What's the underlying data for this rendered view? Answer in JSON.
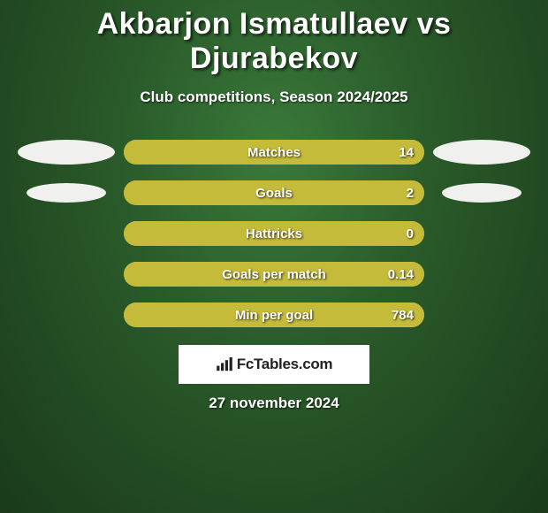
{
  "title": "Akbarjon Ismatullaev vs Djurabekov",
  "subtitle": "Club competitions, Season 2024/2025",
  "date": "27 november 2024",
  "brand": "FcTables.com",
  "colors": {
    "bar_track": "#a9a12f",
    "bar_fill": "#c4bb3a",
    "ellipse": "#f0f0ef",
    "text": "#ffffff",
    "label_fontsize": 15,
    "value_fontsize": 15
  },
  "left_ellipses": [
    {
      "size": "big"
    },
    {
      "size": "small"
    }
  ],
  "right_ellipses": [
    {
      "size": "big"
    },
    {
      "size": "small"
    }
  ],
  "stats": [
    {
      "label": "Matches",
      "value": "14",
      "fill_pct": 100
    },
    {
      "label": "Goals",
      "value": "2",
      "fill_pct": 100
    },
    {
      "label": "Hattricks",
      "value": "0",
      "fill_pct": 100
    },
    {
      "label": "Goals per match",
      "value": "0.14",
      "fill_pct": 100
    },
    {
      "label": "Min per goal",
      "value": "784",
      "fill_pct": 100
    }
  ]
}
